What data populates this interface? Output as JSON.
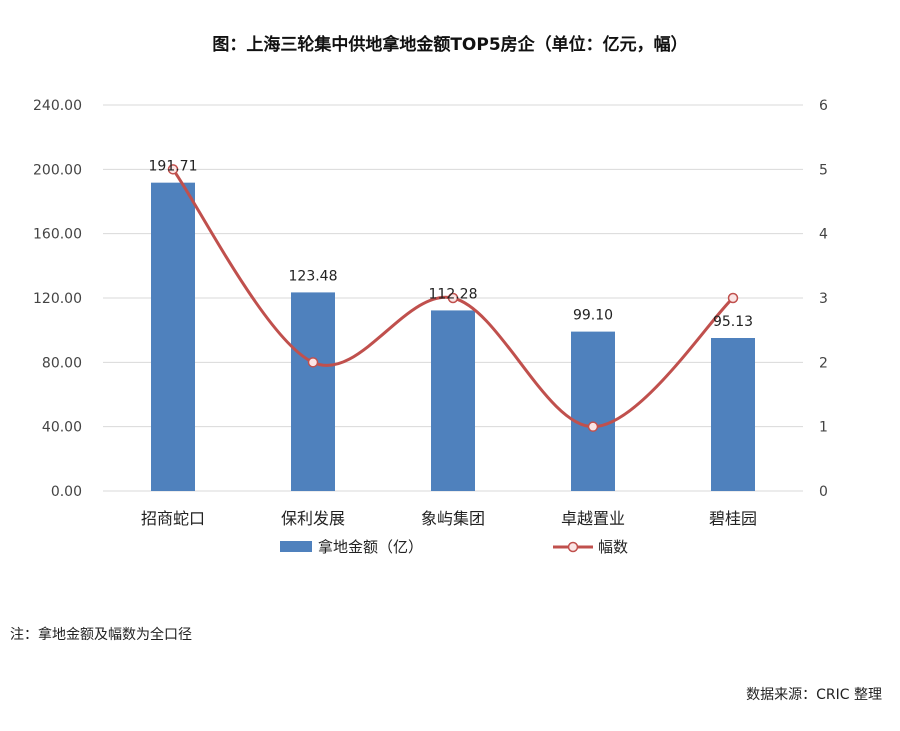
{
  "title": "图：上海三轮集中供地拿地金额TOP5房企（单位：亿元，幅）",
  "note": "注：拿地金额及幅数为全口径",
  "source": "数据来源：CRIC 整理",
  "colors": {
    "bar": "#4f81bd",
    "line": "#c0504d",
    "marker_fill": "#fbe5e5",
    "grid": "#d9d9d9"
  },
  "chart_data": {
    "type": "bar",
    "categories": [
      "招商蛇口",
      "保利发展",
      "象屿集团",
      "卓越置业",
      "碧桂园"
    ],
    "series": [
      {
        "name": "拿地金额（亿）",
        "type": "bar",
        "axis": "left",
        "values": [
          191.71,
          123.48,
          112.28,
          99.1,
          95.13
        ],
        "labels": [
          "191.71",
          "123.48",
          "112.28",
          "99.10",
          "95.13"
        ]
      },
      {
        "name": "幅数",
        "type": "line",
        "axis": "right",
        "values": [
          5,
          2,
          3,
          1,
          3
        ]
      }
    ],
    "y_left": {
      "ylim": [
        0,
        240
      ],
      "ticks": [
        "0.00",
        "40.00",
        "80.00",
        "120.00",
        "160.00",
        "200.00",
        "240.00"
      ]
    },
    "y_right": {
      "ylim": [
        0,
        6
      ],
      "ticks": [
        "0",
        "1",
        "2",
        "3",
        "4",
        "5",
        "6"
      ]
    },
    "grid": true,
    "legend": "bottom"
  }
}
